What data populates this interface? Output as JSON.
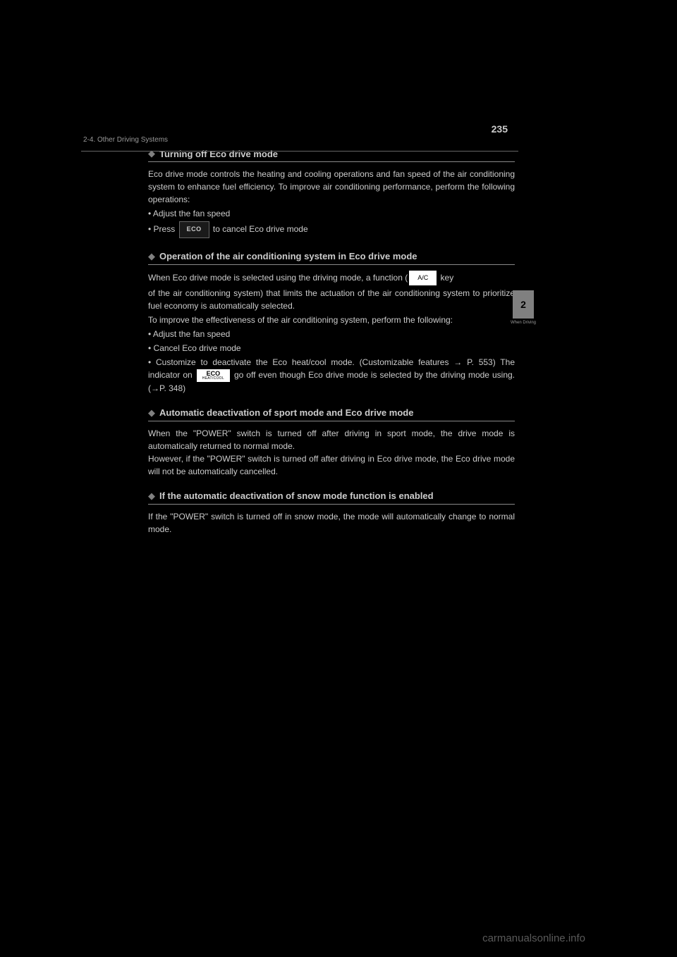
{
  "page_number": "235",
  "header_breadcrumb": "2-4. Other Driving Systems",
  "side_tab": {
    "number": "2",
    "label": "When Driving"
  },
  "sections": [
    {
      "title": "Turning off Eco drive mode",
      "body_html": "Eco drive mode controls the heating and cooling operations and fan speed of the air conditioning system to enhance fuel efficiency. To improve air conditioning performance, perform the following operations:",
      "bullets": [
        "Adjust the fan speed",
        {
          "prefix": "Press ",
          "icon": "eco-dark",
          "suffix": " to cancel Eco drive mode"
        }
      ]
    },
    {
      "title": "Operation of the air conditioning system in Eco drive mode",
      "body_parts": [
        {
          "text": "When Eco drive mode is selected using the driving mode, a function (",
          "icon": "ac-light",
          "text_after": " key"
        },
        "of the air conditioning system) that limits the actuation of the air conditioning system to prioritize fuel economy is automatically selected.",
        "To improve the effectiveness of the air conditioning system, perform the following:",
        "• Adjust the fan speed",
        "• Cancel Eco drive mode",
        {
          "bullet": "• Customize to deactivate the Eco heat/cool mode. (Customizable features → P. 553)\nThe indicator on ",
          "icon": "eco-heatcool",
          "suffix": " go off even though Eco drive mode is selected by the driving mode using. (→P. 348)"
        }
      ]
    },
    {
      "title": "Automatic deactivation of sport mode and Eco drive mode",
      "body": "When the \"POWER\" switch is turned off after driving in sport mode, the drive mode is automatically returned to normal mode.\nHowever, if the \"POWER\" switch is turned off after driving in Eco drive mode, the Eco drive mode will not be automatically cancelled."
    },
    {
      "title": "If the automatic deactivation of snow mode function is enabled",
      "body": "If the \"POWER\" switch is turned off in snow mode, the mode will automatically change to normal mode."
    }
  ],
  "watermark": "carmanualsonline.info",
  "colors": {
    "background": "#000000",
    "text": "#cccccc",
    "heading": "#cccccc",
    "divider": "#888888",
    "diamond": "#808080",
    "tab_bg": "#808080",
    "watermark": "#5a5a5a"
  }
}
